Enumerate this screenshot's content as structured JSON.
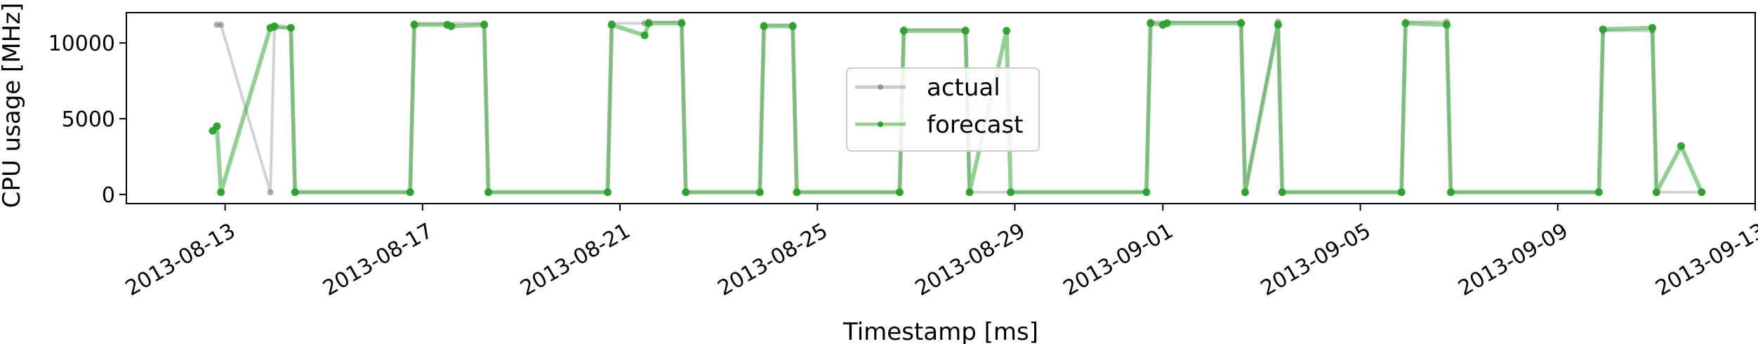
{
  "chart_data": {
    "type": "line",
    "title": "",
    "xlabel": "Timestamp [ms]",
    "ylabel": "CPU usage [MHz]",
    "x_range": [
      "2013-08-11",
      "2013-09-13"
    ],
    "ylim": [
      -600,
      12000
    ],
    "x_ticks": [
      "2013-08-13",
      "2013-08-17",
      "2013-08-21",
      "2013-08-25",
      "2013-08-29",
      "2013-09-01",
      "2013-09-05",
      "2013-09-09",
      "2013-09-13"
    ],
    "y_ticks": [
      0,
      5000,
      10000
    ],
    "grid": false,
    "legend": {
      "placement": "center",
      "entries": [
        "actual",
        "forecast"
      ]
    },
    "series": [
      {
        "name": "actual",
        "color": "#7f7f7f",
        "x": [
          "2013-08-12 20:00",
          "2013-08-12 22:00",
          "2013-08-13 22:00",
          "2013-08-14 00:00",
          "2013-08-14 08:00",
          "2013-08-14 10:00",
          "2013-08-16 18:00",
          "2013-08-16 20:00",
          "2013-08-18 06:00",
          "2013-08-18 08:00",
          "2013-08-20 18:00",
          "2013-08-20 20:00",
          "2013-08-21 12:00",
          "2013-08-21 14:00",
          "2013-08-22 06:00",
          "2013-08-22 08:00",
          "2013-08-23 20:00",
          "2013-08-23 22:00",
          "2013-08-24 12:00",
          "2013-08-24 14:00",
          "2013-08-26 16:00",
          "2013-08-26 18:00",
          "2013-08-28 00:00",
          "2013-08-28 02:00",
          "2013-08-31 16:00",
          "2013-08-31 18:00",
          "2013-09-02 14:00",
          "2013-09-02 16:00",
          "2013-09-03 08:00",
          "2013-09-03 10:00",
          "2013-09-05 20:00",
          "2013-09-05 22:00",
          "2013-09-06 18:00",
          "2013-09-06 20:00",
          "2013-09-09 20:00",
          "2013-09-09 22:00",
          "2013-09-10 22:00",
          "2013-09-11 00:00",
          "2013-09-11 22:00"
        ],
        "values": [
          11200,
          11200,
          150,
          11000,
          11000,
          150,
          150,
          11300,
          11300,
          150,
          150,
          11300,
          11300,
          11400,
          11400,
          150,
          150,
          11200,
          11200,
          150,
          150,
          10900,
          10900,
          150,
          150,
          11400,
          11400,
          150,
          11400,
          150,
          150,
          11400,
          11400,
          150,
          150,
          10800,
          10800,
          150,
          150
        ]
      },
      {
        "name": "forecast",
        "color": "#2ca02c",
        "x": [
          "2013-08-12 18:00",
          "2013-08-12 20:00",
          "2013-08-12 22:00",
          "2013-08-13 22:00",
          "2013-08-14 00:00",
          "2013-08-14 08:00",
          "2013-08-14 10:00",
          "2013-08-16 18:00",
          "2013-08-16 20:00",
          "2013-08-17 12:00",
          "2013-08-17 14:00",
          "2013-08-18 06:00",
          "2013-08-18 08:00",
          "2013-08-20 18:00",
          "2013-08-20 20:00",
          "2013-08-21 12:00",
          "2013-08-21 14:00",
          "2013-08-22 06:00",
          "2013-08-22 08:00",
          "2013-08-23 20:00",
          "2013-08-23 22:00",
          "2013-08-24 12:00",
          "2013-08-24 14:00",
          "2013-08-26 16:00",
          "2013-08-26 18:00",
          "2013-08-28 00:00",
          "2013-08-28 02:00",
          "2013-08-28 20:00",
          "2013-08-28 22:00",
          "2013-08-31 16:00",
          "2013-08-31 18:00",
          "2013-09-01 00:00",
          "2013-09-01 02:00",
          "2013-09-02 14:00",
          "2013-09-02 16:00",
          "2013-09-03 08:00",
          "2013-09-03 10:00",
          "2013-09-05 20:00",
          "2013-09-05 22:00",
          "2013-09-06 18:00",
          "2013-09-06 20:00",
          "2013-09-09 20:00",
          "2013-09-09 22:00",
          "2013-09-10 22:00",
          "2013-09-11 00:00",
          "2013-09-11 12:00",
          "2013-09-11 22:00"
        ],
        "values": [
          4200,
          4500,
          150,
          11000,
          11100,
          11000,
          150,
          150,
          11200,
          11200,
          11100,
          11200,
          150,
          150,
          11200,
          10500,
          11300,
          11300,
          150,
          150,
          11100,
          11100,
          150,
          150,
          10800,
          10800,
          150,
          10800,
          150,
          150,
          11300,
          11200,
          11300,
          11300,
          150,
          11200,
          150,
          150,
          11300,
          11200,
          150,
          150,
          10900,
          11000,
          150,
          3200,
          150
        ]
      }
    ]
  }
}
